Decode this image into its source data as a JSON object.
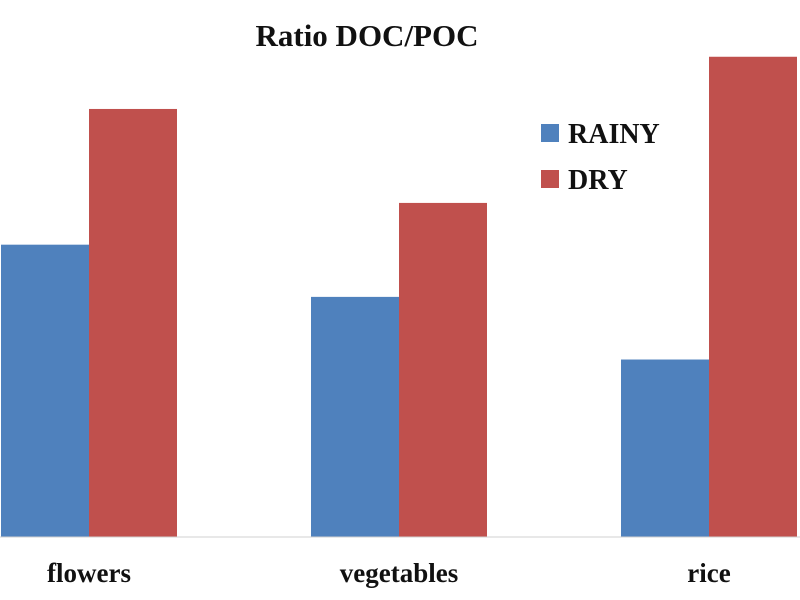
{
  "chart_data": {
    "type": "bar",
    "title": "Ratio DOC/POC",
    "xlabel": "",
    "ylabel": "",
    "categories": [
      "flowers",
      "vegetables",
      "rice"
    ],
    "series": [
      {
        "name": "RAINY",
        "color": "#4f81bd",
        "values": [
          5.6,
          4.6,
          3.4
        ]
      },
      {
        "name": "DRY",
        "color": "#c0504d",
        "values": [
          8.2,
          6.4,
          9.2
        ]
      }
    ],
    "ylim": [
      0,
      10
    ],
    "grid": false,
    "legend": "top-right"
  }
}
